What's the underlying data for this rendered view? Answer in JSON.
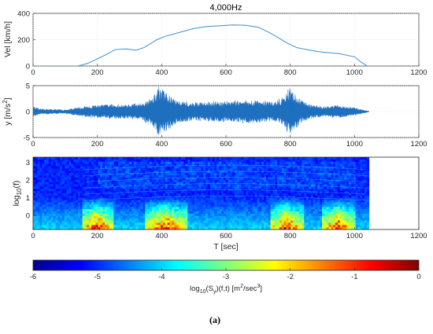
{
  "chart_data": [
    {
      "type": "line",
      "title": "4,000Hz",
      "xlabel": "",
      "ylabel": "Vel [km/h]",
      "xlim": [
        0,
        1200
      ],
      "ylim": [
        0,
        400
      ],
      "xticks": [
        "0",
        "200",
        "400",
        "600",
        "800",
        "1000",
        "1200"
      ],
      "yticks": [
        "0",
        "200",
        "400"
      ],
      "grid": true,
      "color": "#3b8ed0",
      "x": [
        0,
        140,
        170,
        200,
        230,
        255,
        290,
        320,
        345,
        365,
        385,
        410,
        440,
        470,
        500,
        540,
        580,
        620,
        660,
        700,
        730,
        760,
        790,
        820,
        860,
        900,
        950,
        1000,
        1020,
        1040
      ],
      "values": [
        0,
        0,
        20,
        55,
        90,
        125,
        130,
        120,
        140,
        170,
        200,
        225,
        245,
        265,
        285,
        300,
        305,
        312,
        310,
        295,
        260,
        220,
        175,
        140,
        120,
        105,
        95,
        70,
        30,
        0
      ]
    },
    {
      "type": "line",
      "title": "",
      "xlabel": "",
      "ylabel_main": "y [m/s",
      "ylabel_sup": "2",
      "ylabel_end": "]",
      "xlim": [
        0,
        1200
      ],
      "ylim": [
        -5,
        5
      ],
      "xticks": [
        "0",
        "200",
        "400",
        "600",
        "800",
        "1000",
        "1200"
      ],
      "yticks": [
        "-5",
        "0",
        "5"
      ],
      "grid": true,
      "color": "#1f6fbf",
      "x": [
        0,
        20,
        100,
        150,
        200,
        250,
        300,
        340,
        370,
        390,
        410,
        450,
        500,
        550,
        600,
        650,
        700,
        750,
        780,
        800,
        830,
        860,
        900,
        950,
        1000,
        1045
      ],
      "values": [
        1.0,
        0.6,
        0.4,
        1.0,
        1.3,
        1.5,
        1.4,
        1.8,
        3.0,
        4.8,
        4.0,
        2.2,
        1.8,
        2.0,
        2.0,
        2.3,
        2.2,
        2.0,
        3.0,
        5.0,
        2.5,
        1.5,
        1.0,
        1.3,
        0.8,
        0.1
      ]
    },
    {
      "type": "heatmap",
      "title": "",
      "xlabel": "T [sec]",
      "ylabel_main": "log",
      "ylabel_sub": "10",
      "ylabel_end": "(f)",
      "xlim": [
        0,
        1200
      ],
      "ylim": [
        -0.8,
        3.3
      ],
      "xticks": [
        "0",
        "200",
        "400",
        "600",
        "800",
        "1000",
        "1200"
      ],
      "yticks": [
        "0",
        "1",
        "2",
        "3"
      ],
      "data_extent_x": [
        0,
        1045
      ],
      "hot_intervals": [
        [
          150,
          250
        ],
        [
          350,
          480
        ],
        [
          740,
          840
        ],
        [
          900,
          1000
        ]
      ],
      "colorbar": {
        "ticks": [
          "-6",
          "-5",
          "-4",
          "-3",
          "-2",
          "-1",
          "0"
        ],
        "range": [
          -6,
          0
        ],
        "label_main": "log",
        "label_sub": "10",
        "label_mid1": "(S",
        "label_sub2": "y",
        "label_mid2": ")(f,t) [m",
        "label_sup": "2",
        "label_mid3": "/sec",
        "label_sup2": "3",
        "label_end": "]",
        "stops": [
          "#00008f",
          "#0000ff",
          "#0080ff",
          "#00ffff",
          "#80ff80",
          "#ffff00",
          "#ff8000",
          "#ff0000",
          "#800000"
        ]
      }
    }
  ],
  "caption": "(a)"
}
